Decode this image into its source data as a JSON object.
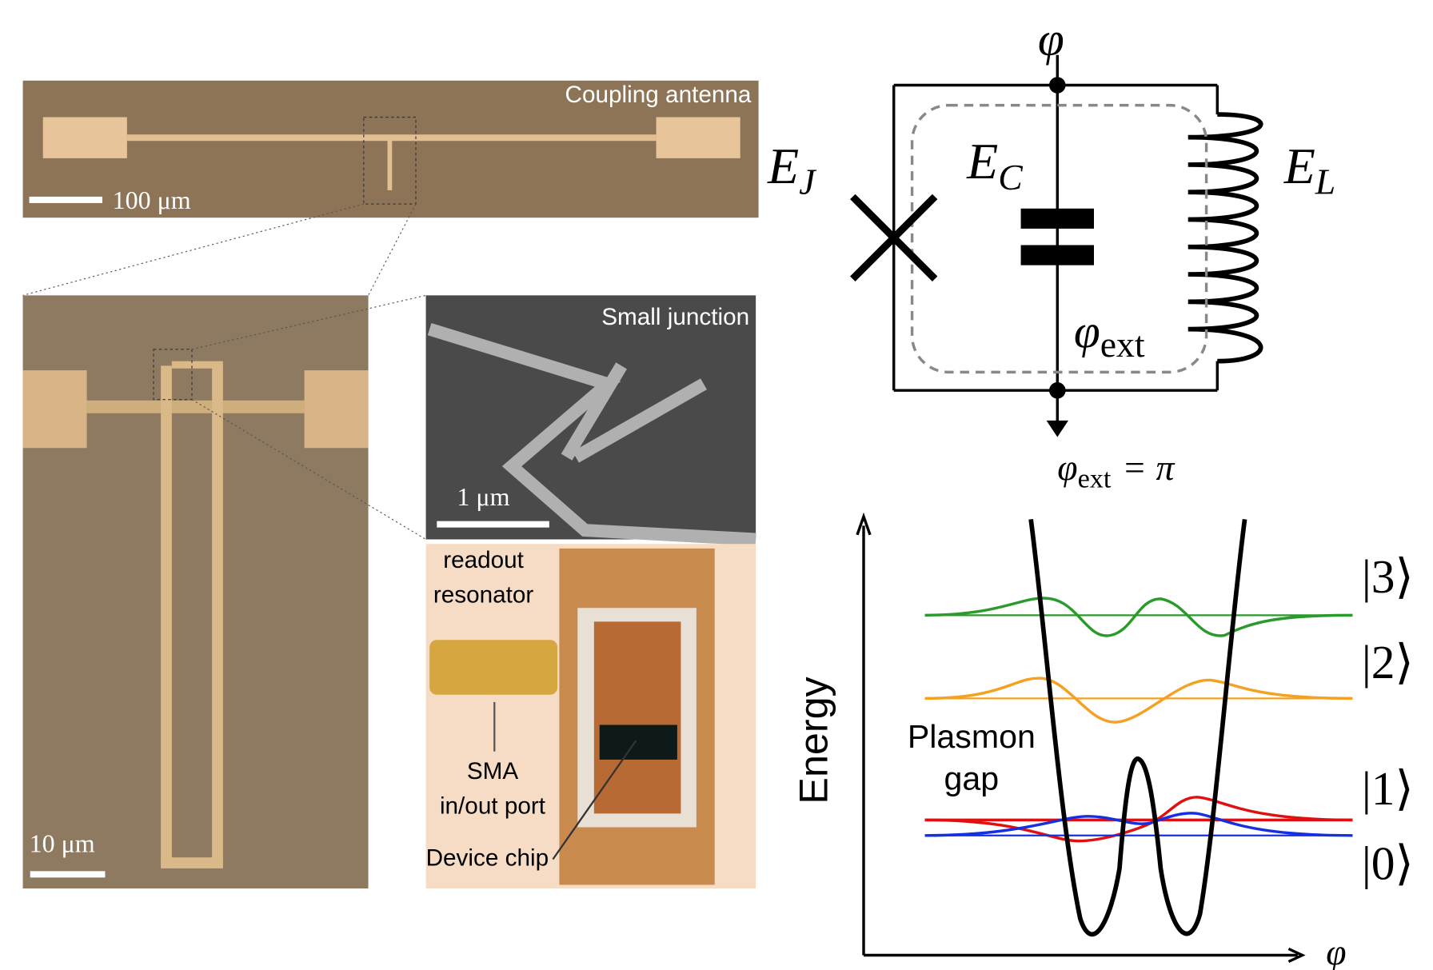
{
  "panels": {
    "antenna": {
      "title": "Coupling antenna",
      "scale": "100 μm"
    },
    "resonator": {
      "scale": "10 μm"
    },
    "junction": {
      "title": "Small junction",
      "scale": "1 μm"
    },
    "device": {
      "label_resonator": [
        "readout",
        "resonator"
      ],
      "label_port": [
        "SMA",
        "in/out port"
      ],
      "label_chip": "Device chip"
    }
  },
  "circuit": {
    "node": "φ",
    "junction": {
      "symbol": "E",
      "subscript": "J"
    },
    "capacitor": {
      "symbol": "E",
      "subscript": "C"
    },
    "inductor": {
      "symbol": "E",
      "subscript": "L"
    },
    "flux": {
      "symbol": "φ",
      "subscript": "ext"
    },
    "bias": {
      "symbol": "φ",
      "subscript": "ext",
      "rhs": "= π"
    }
  },
  "energy_plot": {
    "y_label": "Energy",
    "x_label": "φ",
    "annotation": [
      "Plasmon",
      "gap"
    ],
    "levels": [
      "|3⟩",
      "|2⟩",
      "|1⟩",
      "|0⟩"
    ]
  }
}
